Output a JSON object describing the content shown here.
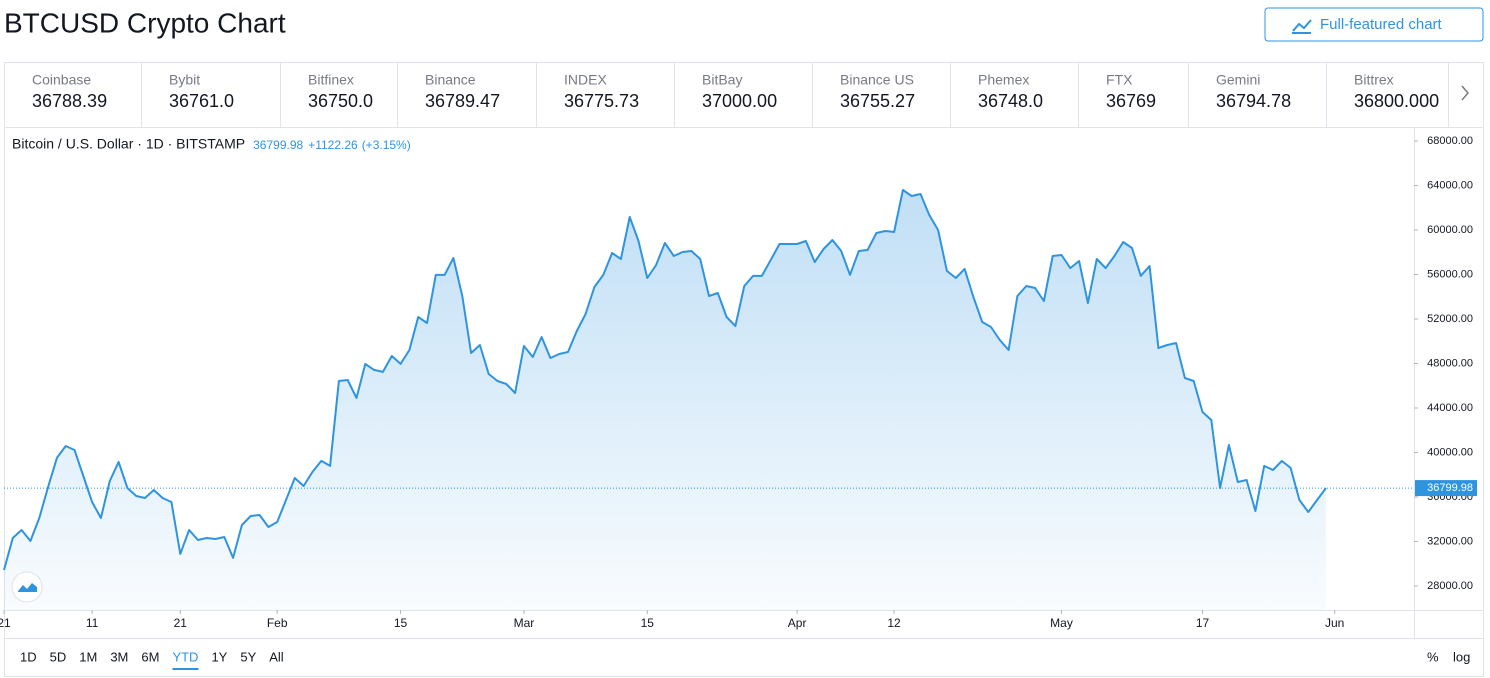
{
  "header": {
    "title": "BTCUSD Crypto Chart",
    "button": "Full-featured chart"
  },
  "exchanges": [
    {
      "name": "Coinbase",
      "price": "36788.39"
    },
    {
      "name": "Bybit",
      "price": "36761.0"
    },
    {
      "name": "Bitfinex",
      "price": "36750.0"
    },
    {
      "name": "Binance",
      "price": "36789.47"
    },
    {
      "name": "INDEX",
      "price": "36775.73"
    },
    {
      "name": "BitBay",
      "price": "37000.00"
    },
    {
      "name": "Binance US",
      "price": "36755.27"
    },
    {
      "name": "Phemex",
      "price": "36748.0"
    },
    {
      "name": "FTX",
      "price": "36769"
    },
    {
      "name": "Gemini",
      "price": "36794.78"
    },
    {
      "name": "Bittrex",
      "price": "36800.000"
    }
  ],
  "chart_data": {
    "type": "line",
    "title": "Bitcoin / U.S. Dollar · 1D · BITSTAMP",
    "last_value": 36799.98,
    "change": "+1122.26",
    "change_pct": "(+3.15%)",
    "color": "#2f94e0",
    "x": [
      "2021-01-01",
      "2021-01-02",
      "2021-01-03",
      "2021-01-04",
      "2021-01-05",
      "2021-01-06",
      "2021-01-07",
      "2021-01-08",
      "2021-01-09",
      "2021-01-10",
      "2021-01-11",
      "2021-01-12",
      "2021-01-13",
      "2021-01-14",
      "2021-01-15",
      "2021-01-16",
      "2021-01-17",
      "2021-01-18",
      "2021-01-19",
      "2021-01-20",
      "2021-01-21",
      "2021-01-22",
      "2021-01-23",
      "2021-01-24",
      "2021-01-25",
      "2021-01-26",
      "2021-01-27",
      "2021-01-28",
      "2021-01-29",
      "2021-01-30",
      "2021-01-31",
      "2021-02-01",
      "2021-02-02",
      "2021-02-03",
      "2021-02-04",
      "2021-02-05",
      "2021-02-06",
      "2021-02-07",
      "2021-02-08",
      "2021-02-09",
      "2021-02-10",
      "2021-02-11",
      "2021-02-12",
      "2021-02-13",
      "2021-02-14",
      "2021-02-15",
      "2021-02-16",
      "2021-02-17",
      "2021-02-18",
      "2021-02-19",
      "2021-02-20",
      "2021-02-21",
      "2021-02-22",
      "2021-02-23",
      "2021-02-24",
      "2021-02-25",
      "2021-02-26",
      "2021-02-27",
      "2021-02-28",
      "2021-03-01",
      "2021-03-02",
      "2021-03-03",
      "2021-03-04",
      "2021-03-05",
      "2021-03-06",
      "2021-03-07",
      "2021-03-08",
      "2021-03-09",
      "2021-03-10",
      "2021-03-11",
      "2021-03-12",
      "2021-03-13",
      "2021-03-14",
      "2021-03-15",
      "2021-03-16",
      "2021-03-17",
      "2021-03-18",
      "2021-03-19",
      "2021-03-20",
      "2021-03-21",
      "2021-03-22",
      "2021-03-23",
      "2021-03-24",
      "2021-03-25",
      "2021-03-26",
      "2021-03-27",
      "2021-03-28",
      "2021-03-29",
      "2021-03-30",
      "2021-03-31",
      "2021-04-01",
      "2021-04-02",
      "2021-04-03",
      "2021-04-04",
      "2021-04-05",
      "2021-04-06",
      "2021-04-07",
      "2021-04-08",
      "2021-04-09",
      "2021-04-10",
      "2021-04-11",
      "2021-04-12",
      "2021-04-13",
      "2021-04-14",
      "2021-04-15",
      "2021-04-16",
      "2021-04-17",
      "2021-04-18",
      "2021-04-19",
      "2021-04-20",
      "2021-04-21",
      "2021-04-22",
      "2021-04-23",
      "2021-04-24",
      "2021-04-25",
      "2021-04-26",
      "2021-04-27",
      "2021-04-28",
      "2021-04-29",
      "2021-04-30",
      "2021-05-01",
      "2021-05-02",
      "2021-05-03",
      "2021-05-04",
      "2021-05-05",
      "2021-05-06",
      "2021-05-07",
      "2021-05-08",
      "2021-05-09",
      "2021-05-10",
      "2021-05-11",
      "2021-05-12",
      "2021-05-13",
      "2021-05-14",
      "2021-05-15",
      "2021-05-16",
      "2021-05-17",
      "2021-05-18",
      "2021-05-19",
      "2021-05-20",
      "2021-05-21",
      "2021-05-22",
      "2021-05-23",
      "2021-05-24",
      "2021-05-25",
      "2021-05-26",
      "2021-05-27",
      "2021-05-28",
      "2021-05-29",
      "2021-05-30",
      "2021-05-31"
    ],
    "values": [
      29440,
      32310,
      33030,
      32040,
      34110,
      36900,
      39510,
      40580,
      40220,
      37890,
      35550,
      34110,
      37440,
      39150,
      36810,
      36090,
      35910,
      36630,
      35910,
      35550,
      30880,
      33030,
      32130,
      32310,
      32220,
      32400,
      30520,
      33480,
      34290,
      34380,
      33300,
      33750,
      35730,
      37710,
      36990,
      38250,
      39240,
      38790,
      46430,
      46520,
      44900,
      47960,
      47420,
      47240,
      48670,
      47960,
      49210,
      52180,
      51640,
      55960,
      55960,
      57480,
      54070,
      48940,
      49660,
      47060,
      46430,
      46160,
      45350,
      49570,
      48580,
      50380,
      48490,
      48850,
      49030,
      50920,
      52450,
      54880,
      55960,
      57930,
      57390,
      61170,
      59010,
      55690,
      56850,
      58830,
      57660,
      58020,
      58110,
      57390,
      54070,
      54340,
      52180,
      51370,
      54970,
      55870,
      55870,
      57300,
      58740,
      58740,
      58740,
      59010,
      57120,
      58290,
      59100,
      58110,
      55960,
      58110,
      58200,
      59730,
      59910,
      59820,
      63600,
      63060,
      63240,
      61350,
      60000,
      56320,
      55690,
      56500,
      53980,
      51730,
      51280,
      50110,
      49210,
      54070,
      54970,
      54790,
      53620,
      57660,
      57750,
      56580,
      57210,
      53440,
      57390,
      56580,
      57660,
      58920,
      58380,
      55870,
      56760,
      49390,
      49660,
      49840,
      46700,
      46430,
      43640,
      42920,
      36810,
      40670,
      37350,
      37530,
      34740,
      38790,
      38430,
      39240,
      38610,
      35730,
      34650,
      35730,
      36800
    ],
    "xlim": [
      "2021-01-01",
      "2021-06-10"
    ],
    "xticks": [
      {
        "value": "2021-01-01",
        "label": "21"
      },
      {
        "value": "2021-01-11",
        "label": "11"
      },
      {
        "value": "2021-01-21",
        "label": "21"
      },
      {
        "value": "2021-02-01",
        "label": "Feb"
      },
      {
        "value": "2021-02-15",
        "label": "15"
      },
      {
        "value": "2021-03-01",
        "label": "Mar"
      },
      {
        "value": "2021-03-15",
        "label": "15"
      },
      {
        "value": "2021-04-01",
        "label": "Apr"
      },
      {
        "value": "2021-04-12",
        "label": "12"
      },
      {
        "value": "2021-05-01",
        "label": "May"
      },
      {
        "value": "2021-05-17",
        "label": "17"
      },
      {
        "value": "2021-06-01",
        "label": "Jun"
      }
    ],
    "ylim": [
      25840,
      69260
    ],
    "yticks": [
      {
        "value": 28000,
        "label": "28000.00"
      },
      {
        "value": 32000,
        "label": "32000.00"
      },
      {
        "value": 36000,
        "label": "36000.00"
      },
      {
        "value": 40000,
        "label": "40000.00"
      },
      {
        "value": 44000,
        "label": "44000.00"
      },
      {
        "value": 48000,
        "label": "48000.00"
      },
      {
        "value": 52000,
        "label": "52000.00"
      },
      {
        "value": 56000,
        "label": "56000.00"
      },
      {
        "value": 60000,
        "label": "60000.00"
      },
      {
        "value": 64000,
        "label": "64000.00"
      },
      {
        "value": 68000,
        "label": "68000.00"
      }
    ]
  },
  "ranges": [
    "1D",
    "5D",
    "1M",
    "3M",
    "6M",
    "YTD",
    "1Y",
    "5Y",
    "All"
  ],
  "active_range": "YTD",
  "toggles": [
    "%",
    "log"
  ]
}
